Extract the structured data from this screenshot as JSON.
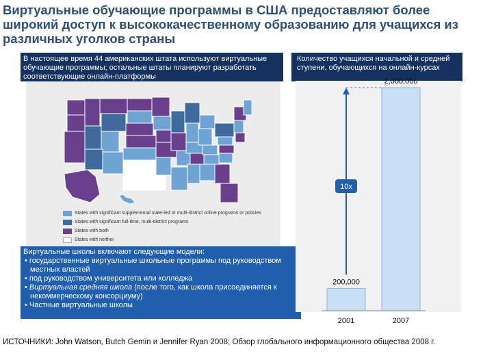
{
  "title": "Виртуальные обучающие программы в США предоставляют более широкий доступ к высококачественному образованию для учащихся из различных уголков страны",
  "map_panel": {
    "header": "В настоящее время 44 американских штата используют виртуальные обучающие программы; остальные штаты планируют разработать соответствующие онлайн-платформы",
    "legend": [
      {
        "label": "States with significant supplemental state-led or multi-district online programs or policies",
        "color": "#6fa3d3"
      },
      {
        "label": "States with significant full-time, multi-district programs",
        "color": "#3e6b9c"
      },
      {
        "label": "States with both",
        "color": "#6a3f8c"
      },
      {
        "label": "States with neither",
        "color": "#ffffff"
      }
    ],
    "colors": {
      "supplemental": "#6fa3d3",
      "fulltime": "#3e6b9c",
      "both": "#6a3f8c",
      "neither": "#ffffff"
    }
  },
  "models": {
    "title": "Виртуальные школы включают следующие модели:",
    "items": [
      {
        "text": "государственные виртуальные школьные программы под руководством местных властей",
        "italic": ""
      },
      {
        "text": "под руководством университета или колледжа",
        "italic": ""
      },
      {
        "italic": "Виртуальная средняя школа",
        "text": " (после того, как школа присоединяется к некоммерческому консорциуму)"
      },
      {
        "text": "Частные виртуальные школы",
        "italic": ""
      }
    ]
  },
  "chart_data": {
    "type": "bar",
    "title": "Количество учащихся начальной и средней ступени, обучающихся на онлайн-курсах",
    "categories": [
      "2001",
      "2007"
    ],
    "values": [
      200000,
      2000000
    ],
    "value_labels": [
      "200,000",
      "2,000,000"
    ],
    "ylim": [
      0,
      2000000
    ],
    "annotation": "10x",
    "bar_color": "#c8dff5",
    "accent_color": "#1f5fae"
  },
  "sources": "ИСТОЧНИКИ: John Watson, Butch Gemin и Jennifer Ryan 2008; Обзор глобального информационного общества 2008 г."
}
